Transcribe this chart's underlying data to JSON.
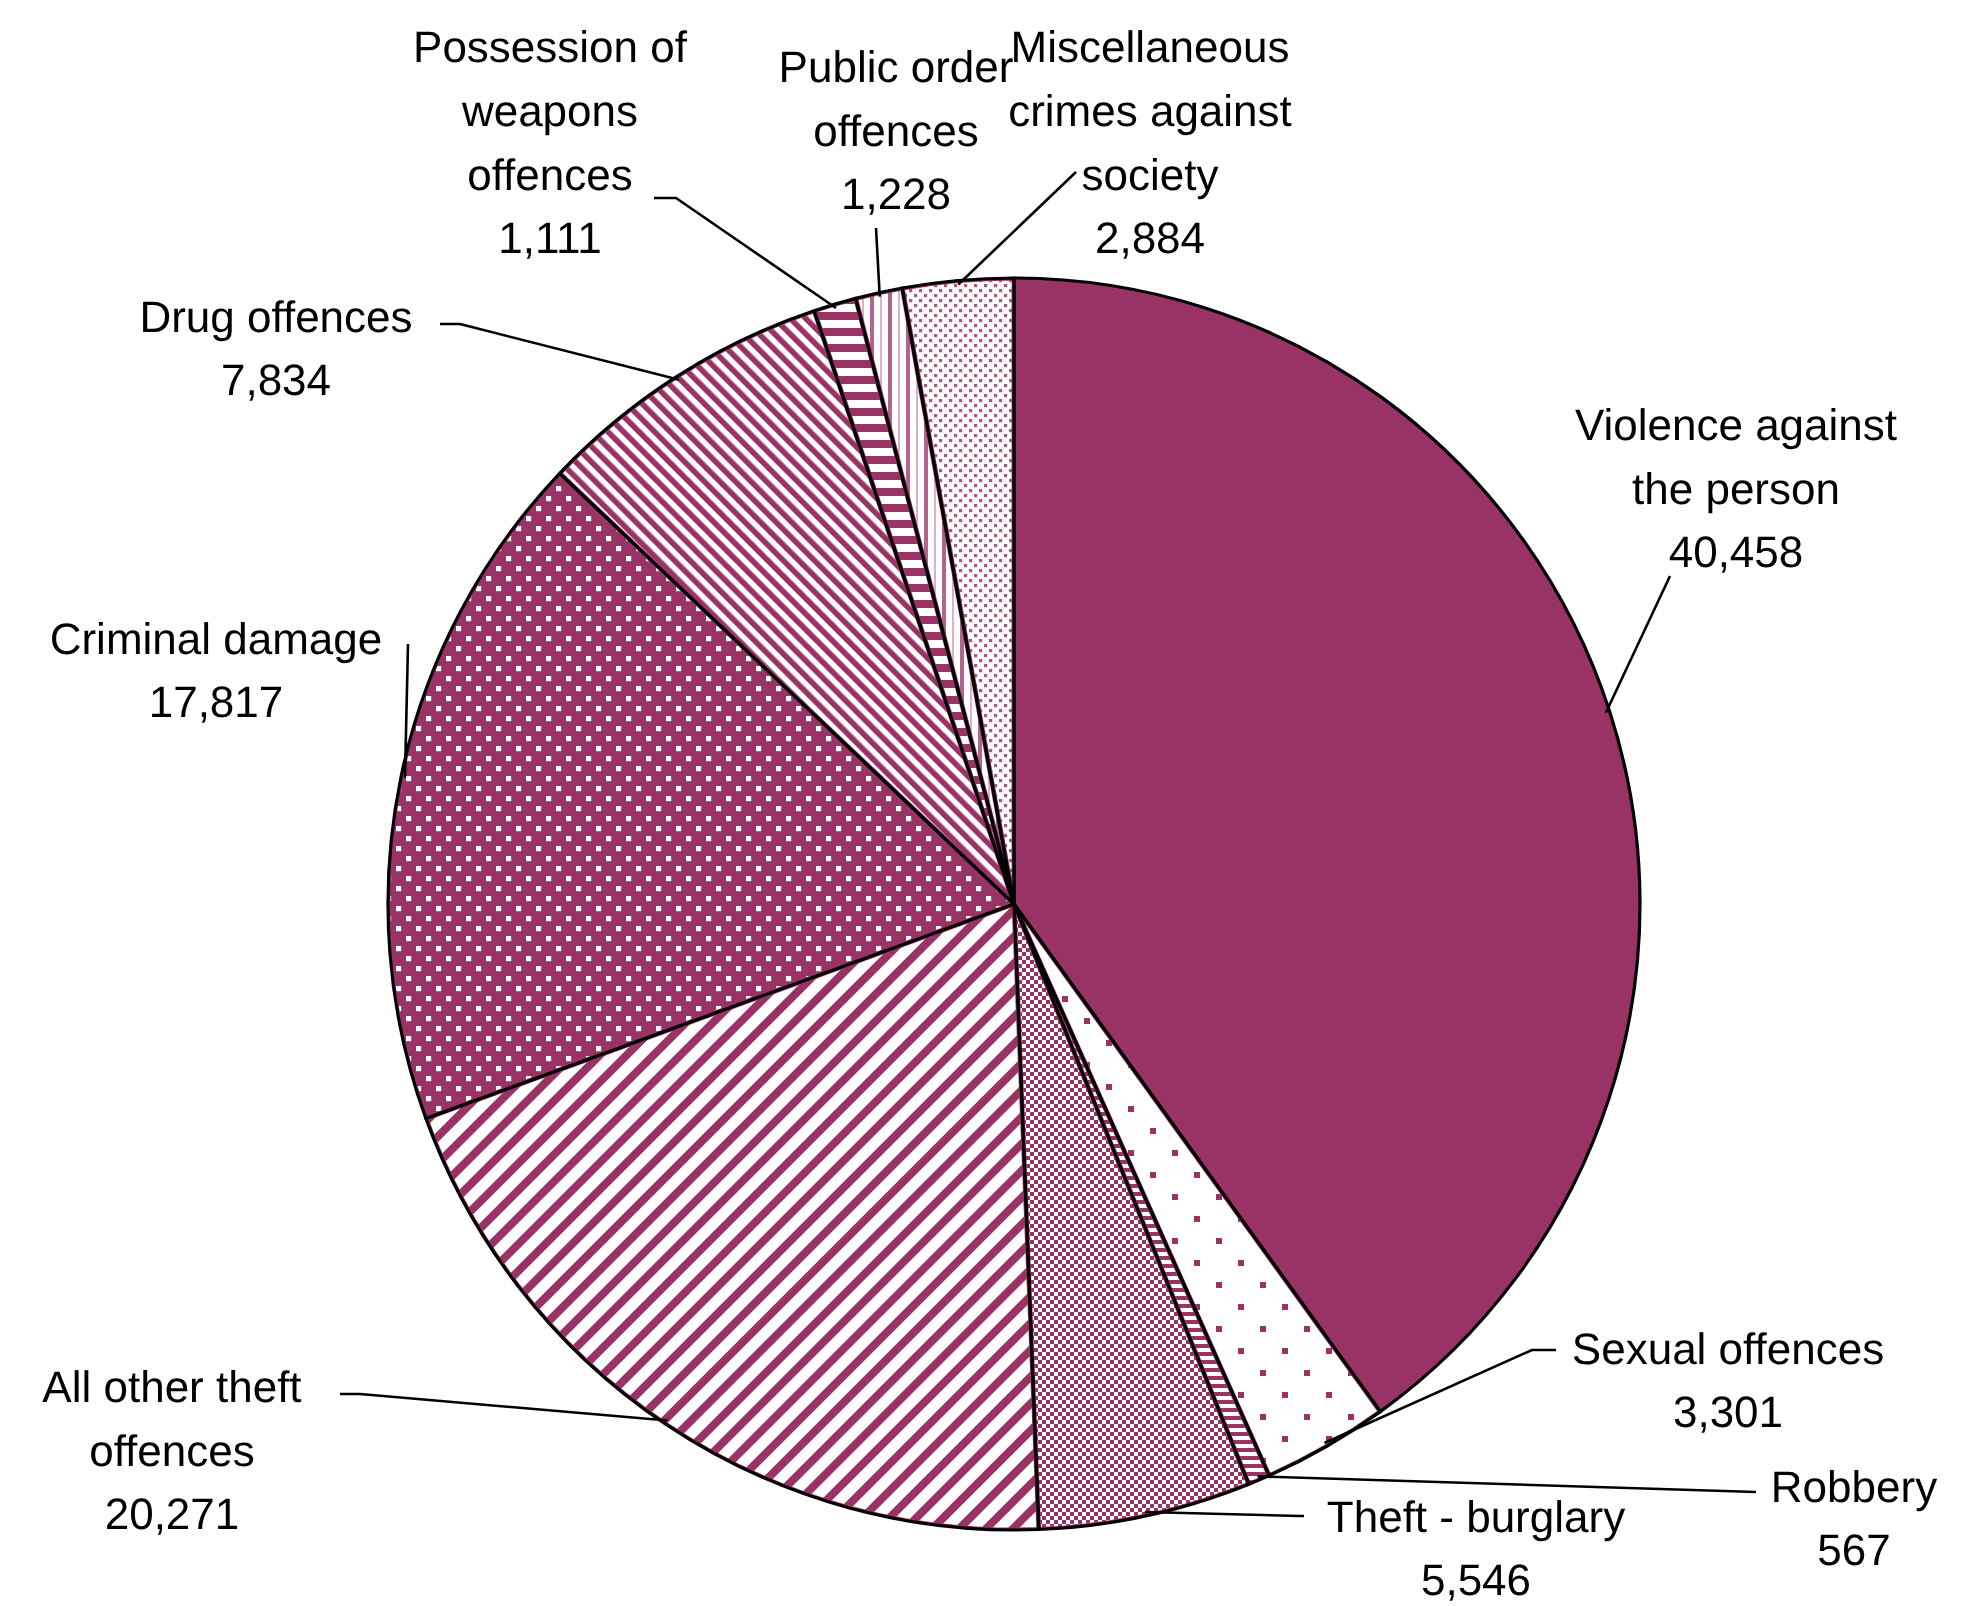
{
  "chart_data": {
    "type": "pie",
    "categories": [
      "Violence against the person",
      "Sexual offences",
      "Robbery",
      "Theft - burglary",
      "All other theft offences",
      "Criminal damage",
      "Drug offences",
      "Possession of weapons offences",
      "Public order offences",
      "Miscellaneous crimes against society"
    ],
    "values": [
      40458,
      3301,
      567,
      5546,
      20271,
      17817,
      7834,
      1111,
      1228,
      2884
    ],
    "value_labels": [
      "40,458",
      "3,301",
      "567",
      "5,546",
      "20,271",
      "17,817",
      "7,834",
      "1,111",
      "1,228",
      "2,884"
    ],
    "colors": [
      "#993366",
      "#993366",
      "#993366",
      "#993366",
      "#993366",
      "#993366",
      "#993366",
      "#993366",
      "#993366",
      "#993366"
    ]
  }
}
